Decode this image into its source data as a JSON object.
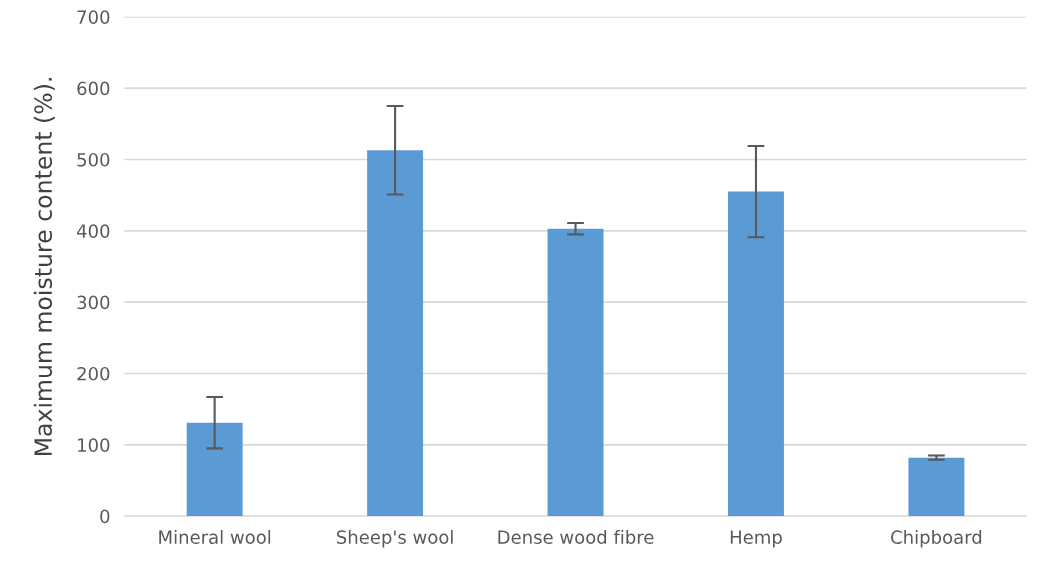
{
  "chart_data": {
    "type": "bar",
    "ylabel": "Maximum moisture content (%).",
    "categories": [
      "Mineral wool",
      "Sheep's wool",
      "Dense wood fibre",
      "Hemp",
      "Chipboard"
    ],
    "values": [
      131,
      513,
      403,
      455,
      82
    ],
    "errors": [
      36,
      62,
      8,
      64,
      3
    ],
    "color": "#5b9bd5",
    "ylim": [
      0,
      700
    ],
    "yticks": [
      0,
      100,
      200,
      300,
      400,
      500,
      600,
      700
    ],
    "grid": "y"
  }
}
